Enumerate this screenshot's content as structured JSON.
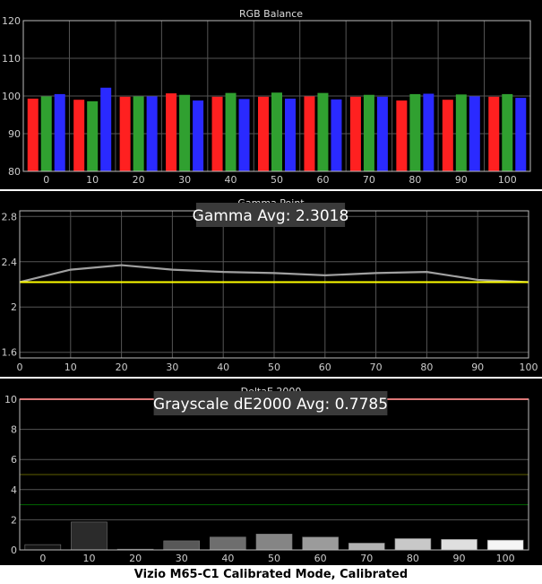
{
  "caption": "Vizio M65-C1 Calibrated Mode, Calibrated",
  "chart_data": [
    {
      "type": "bar",
      "title": "RGB Balance",
      "categories": [
        "0",
        "10",
        "20",
        "30",
        "40",
        "50",
        "60",
        "70",
        "80",
        "90",
        "100"
      ],
      "ylim": [
        80,
        120
      ],
      "yticks": [
        80,
        90,
        100,
        110,
        120
      ],
      "grid": true,
      "series": [
        {
          "color": "#ff2020",
          "values": [
            99.3,
            99.0,
            99.8,
            100.7,
            99.8,
            99.8,
            99.9,
            99.8,
            98.8,
            99.0,
            99.8
          ]
        },
        {
          "color": "#30a030",
          "values": [
            99.9,
            98.6,
            99.9,
            100.3,
            100.8,
            100.9,
            100.8,
            100.3,
            100.5,
            100.4,
            100.5
          ]
        },
        {
          "color": "#2a2aff",
          "values": [
            100.5,
            102.2,
            99.9,
            98.8,
            99.2,
            99.3,
            99.1,
            99.8,
            100.6,
            99.9,
            99.5
          ]
        }
      ]
    },
    {
      "type": "line",
      "title": "Gamma Point",
      "annotation": "Gamma Avg: 2.3018",
      "x": [
        0,
        10,
        20,
        30,
        40,
        50,
        60,
        70,
        80,
        90,
        100
      ],
      "xlim": [
        0,
        100
      ],
      "ylim": [
        1.55,
        2.85
      ],
      "yticks": [
        1.6,
        2,
        2.4,
        2.8
      ],
      "yticklabels": [
        "1.6",
        "2",
        "2.4",
        "2.8"
      ],
      "grid": true,
      "series": [
        {
          "color": "#a0a0a0",
          "values": [
            2.22,
            2.33,
            2.37,
            2.33,
            2.31,
            2.3,
            2.28,
            2.3,
            2.31,
            2.24,
            2.22
          ]
        },
        {
          "color": "#ffff00",
          "values": [
            2.22,
            2.22,
            2.22,
            2.22,
            2.22,
            2.22,
            2.22,
            2.22,
            2.22,
            2.22,
            2.22
          ]
        }
      ]
    },
    {
      "type": "bar",
      "title": "DeltaE 2000",
      "annotation": "Grayscale dE2000 Avg: 0.7785",
      "categories": [
        "0",
        "10",
        "20",
        "30",
        "40",
        "50",
        "60",
        "70",
        "80",
        "90",
        "100"
      ],
      "values": [
        0.35,
        1.85,
        0.05,
        0.6,
        0.85,
        1.05,
        0.85,
        0.45,
        0.75,
        0.7,
        0.65
      ],
      "ylim": [
        0,
        10
      ],
      "yticks": [
        0,
        2,
        4,
        6,
        8,
        10
      ],
      "grid": true,
      "reference_lines": [
        {
          "value": 10,
          "color": "#ff3333"
        },
        {
          "value": 5,
          "color": "#606000"
        },
        {
          "value": 3,
          "color": "#006600"
        }
      ]
    }
  ]
}
